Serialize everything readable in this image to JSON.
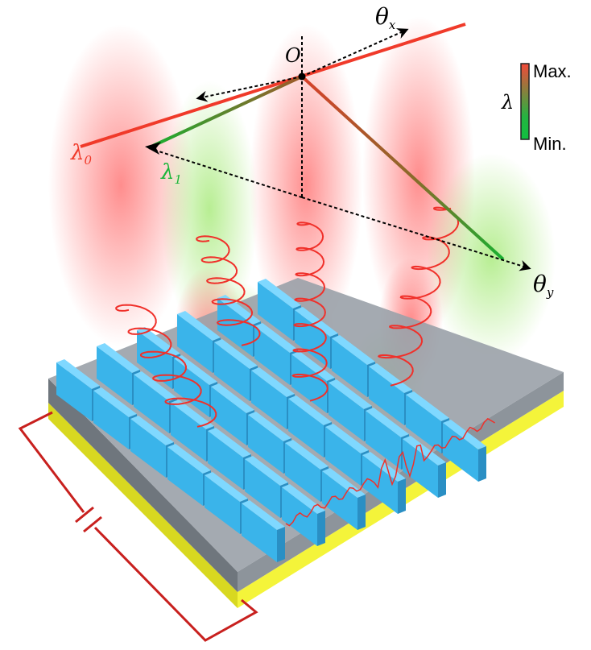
{
  "labels": {
    "origin": "O",
    "theta_x": "θ",
    "theta_x_sub": "x",
    "theta_y": "θ",
    "theta_y_sub": "y",
    "lambda0": "λ",
    "lambda0_sub": "0",
    "lambda1": "λ",
    "lambda1_sub": "1"
  },
  "colorbar": {
    "symbol": "λ",
    "max_label": "Max.",
    "min_label": "Min.",
    "max_color": "#f2493a",
    "min_color": "#14c040"
  },
  "colors": {
    "red_beam": "#f03a2a",
    "green_beam": "#1cb53a",
    "resonator": "#3ab4ea",
    "substrate": "#8a9199",
    "electrode": "#f4f43a",
    "circuit": "#c8201e"
  }
}
